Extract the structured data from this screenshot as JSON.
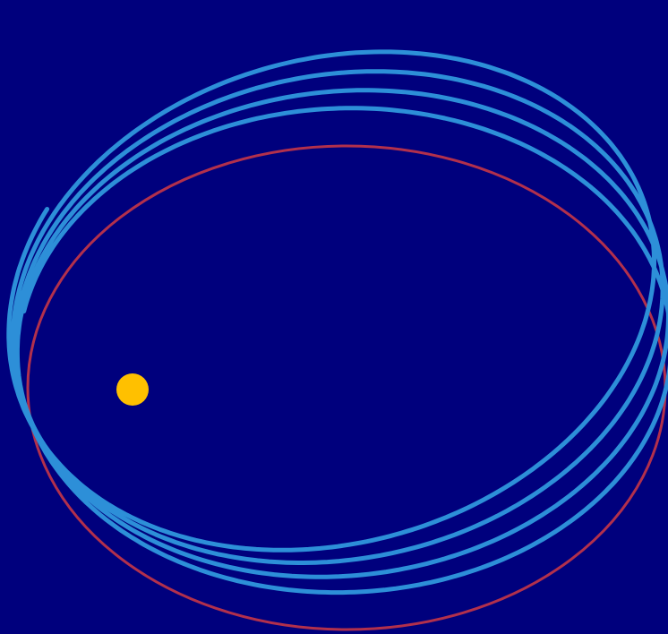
{
  "diagram": {
    "kind": "orbital precession",
    "colors": {
      "background": "#00007d",
      "reference_orbit": "#b2304c",
      "precessing_orbit": "#2d8fd8",
      "sun": "#ffc000"
    },
    "reference_orbit": {
      "shape": "ellipse",
      "stroke": "reference_orbit"
    },
    "precessing_orbit": {
      "turns": 4,
      "shape": "rosette",
      "stroke": "precessing_orbit"
    },
    "sun": {
      "fill": "sun"
    }
  }
}
